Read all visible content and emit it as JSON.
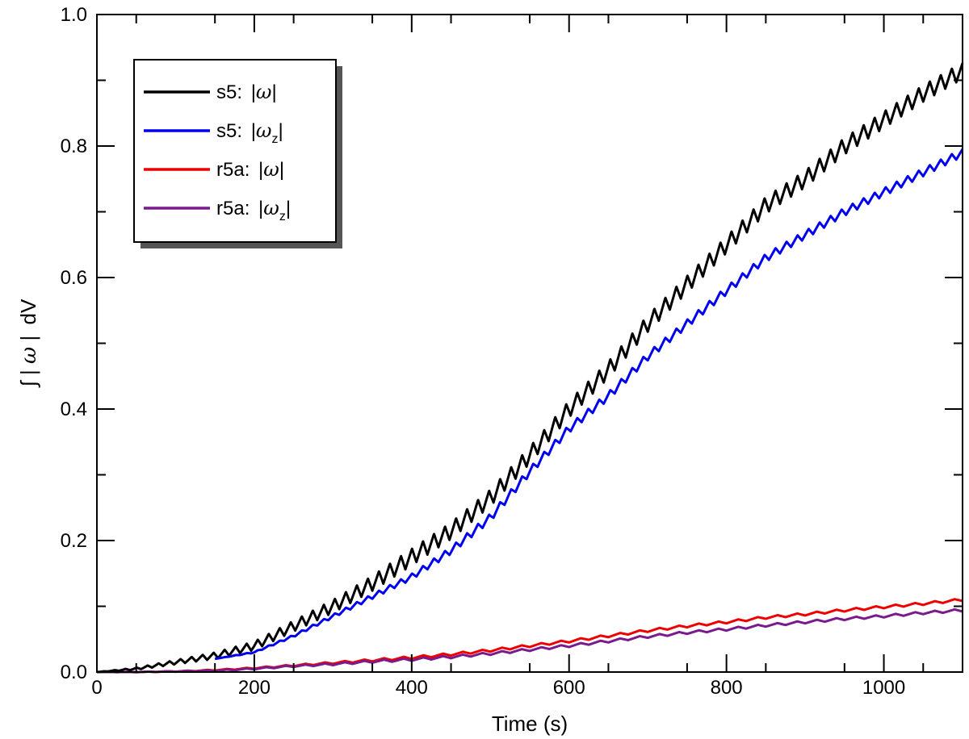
{
  "chart_data": {
    "type": "line",
    "title": "",
    "xlabel": "Time (s)",
    "ylabel_parts": {
      "integral": "∫",
      "bar_left": "|",
      "omega": "ω",
      "bar_right": "|",
      "unit": "dV"
    },
    "xlim": [
      0,
      1100
    ],
    "ylim": [
      0.0,
      1.0
    ],
    "x_ticks": [
      0,
      200,
      400,
      600,
      800,
      1000
    ],
    "x_tick_labels": [
      "0",
      "200",
      "400",
      "600",
      "800",
      "1000"
    ],
    "y_ticks": [
      0.0,
      0.2,
      0.4,
      0.6,
      0.8,
      1.0
    ],
    "y_tick_labels": [
      "0.0",
      "0.2",
      "0.4",
      "0.6",
      "0.8",
      "1.0"
    ],
    "grid": false,
    "legend_position": "top-left",
    "series": [
      {
        "name": "s5: |ω|",
        "legend": {
          "prefix": "s5:",
          "symbol": "ω",
          "subscript": ""
        },
        "color": "#000000",
        "x": [
          0,
          50,
          100,
          150,
          200,
          250,
          300,
          350,
          400,
          450,
          500,
          550,
          600,
          650,
          700,
          750,
          800,
          850,
          900,
          950,
          1000,
          1050,
          1100
        ],
        "y": [
          0.0,
          0.005,
          0.015,
          0.025,
          0.04,
          0.07,
          0.1,
          0.135,
          0.175,
          0.215,
          0.265,
          0.33,
          0.4,
          0.46,
          0.53,
          0.59,
          0.65,
          0.71,
          0.75,
          0.8,
          0.84,
          0.88,
          0.915
        ],
        "oscillation_amplitude": 0.025,
        "oscillation_period": 14
      },
      {
        "name": "s5: |ω_z|",
        "legend": {
          "prefix": "s5:",
          "symbol": "ω",
          "subscript": "z"
        },
        "color": "#0000ee",
        "x": [
          150,
          200,
          250,
          300,
          350,
          400,
          450,
          500,
          550,
          600,
          650,
          700,
          750,
          800,
          850,
          900,
          950,
          1000,
          1050,
          1100
        ],
        "y": [
          0.02,
          0.03,
          0.055,
          0.085,
          0.115,
          0.145,
          0.185,
          0.235,
          0.305,
          0.37,
          0.42,
          0.48,
          0.53,
          0.58,
          0.63,
          0.665,
          0.7,
          0.73,
          0.76,
          0.79
        ],
        "oscillation_amplitude": 0.012,
        "oscillation_period": 14
      },
      {
        "name": "r5a: |ω|",
        "legend": {
          "prefix": "r5a:",
          "symbol": "ω",
          "subscript": ""
        },
        "color": "#ee0000",
        "x": [
          0,
          50,
          100,
          150,
          200,
          250,
          300,
          350,
          400,
          450,
          500,
          550,
          600,
          650,
          700,
          750,
          800,
          850,
          900,
          950,
          1000,
          1050,
          1100
        ],
        "y": [
          0.0,
          0.0,
          0.001,
          0.003,
          0.006,
          0.01,
          0.014,
          0.018,
          0.022,
          0.027,
          0.033,
          0.04,
          0.047,
          0.055,
          0.063,
          0.07,
          0.076,
          0.083,
          0.088,
          0.094,
          0.099,
          0.104,
          0.11
        ],
        "oscillation_amplitude": 0.004,
        "oscillation_period": 25
      },
      {
        "name": "r5a: |ω_z|",
        "legend": {
          "prefix": "r5a:",
          "symbol": "ω",
          "subscript": "z"
        },
        "color": "#7a1a8c",
        "x": [
          0,
          50,
          100,
          150,
          200,
          250,
          300,
          350,
          400,
          450,
          500,
          550,
          600,
          650,
          700,
          750,
          800,
          850,
          900,
          950,
          1000,
          1050,
          1100
        ],
        "y": [
          0.0,
          0.0,
          0.001,
          0.002,
          0.005,
          0.009,
          0.012,
          0.016,
          0.019,
          0.023,
          0.028,
          0.034,
          0.04,
          0.047,
          0.054,
          0.06,
          0.065,
          0.071,
          0.076,
          0.081,
          0.085,
          0.09,
          0.094
        ],
        "oscillation_amplitude": 0.004,
        "oscillation_period": 25
      }
    ]
  }
}
